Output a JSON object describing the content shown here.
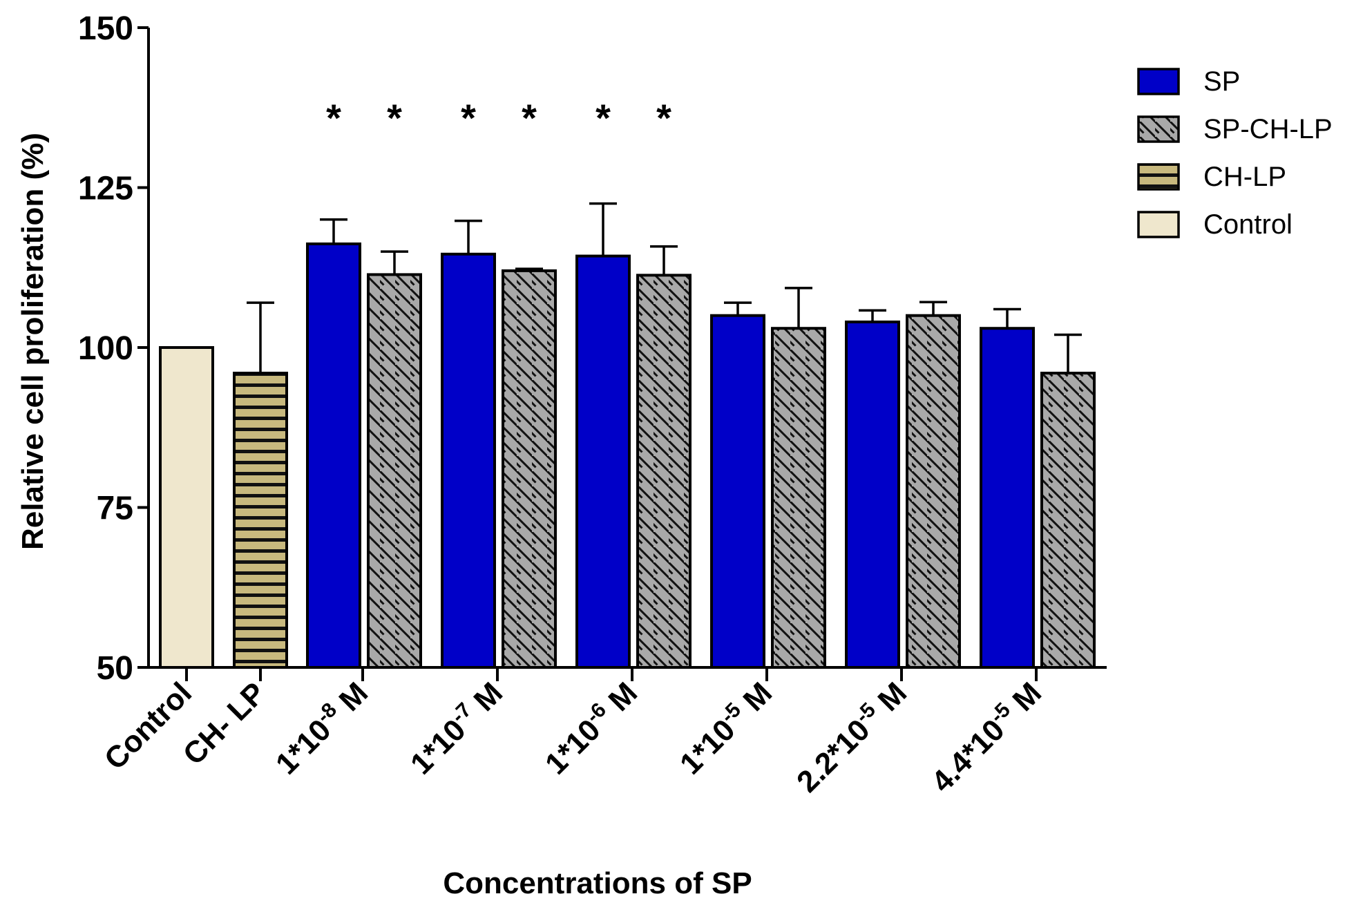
{
  "chart_data": {
    "type": "bar",
    "title": "",
    "xlabel": "Concentrations of SP",
    "ylabel": "Relative cell proliferation (%)",
    "ylim": [
      50,
      150
    ],
    "yticks": [
      50,
      75,
      100,
      125,
      150
    ],
    "grid": false,
    "legend_position": "top-right",
    "colors": {
      "SP": "#0000c8",
      "SP-CH-LP": "#a9a9a9",
      "CH-LP": "#c8b97e",
      "Control": "#efe7cd"
    },
    "legend": [
      {
        "name": "SP",
        "pattern": "solid"
      },
      {
        "name": "SP-CH-LP",
        "pattern": "diagonal"
      },
      {
        "name": "CH-LP",
        "pattern": "horizontal"
      },
      {
        "name": "Control",
        "pattern": "solid"
      }
    ],
    "groups": [
      {
        "label": "Control",
        "bars": [
          {
            "series": "Control",
            "value": 100,
            "error": 0,
            "significant": false
          }
        ]
      },
      {
        "label": "CH- LP",
        "bars": [
          {
            "series": "CH-LP",
            "value": 96,
            "error": 11,
            "significant": false
          }
        ]
      },
      {
        "label": "1*10-8 M",
        "base": "1*10",
        "exp": "-8",
        "unit": " M",
        "bars": [
          {
            "series": "SP",
            "value": 116.2,
            "error": 3.8,
            "significant": true
          },
          {
            "series": "SP-CH-LP",
            "value": 111.4,
            "error": 3.6,
            "significant": true
          }
        ]
      },
      {
        "label": "1*10-7 M",
        "base": "1*10",
        "exp": "-7",
        "unit": " M",
        "bars": [
          {
            "series": "SP",
            "value": 114.6,
            "error": 5.2,
            "significant": true
          },
          {
            "series": "SP-CH-LP",
            "value": 112.0,
            "error": 0.3,
            "significant": true
          }
        ]
      },
      {
        "label": "1*10-6 M",
        "base": "1*10",
        "exp": "-6",
        "unit": " M",
        "bars": [
          {
            "series": "SP",
            "value": 114.3,
            "error": 8.2,
            "significant": true
          },
          {
            "series": "SP-CH-LP",
            "value": 111.3,
            "error": 4.5,
            "significant": true
          }
        ]
      },
      {
        "label": "1*10-5 M",
        "base": "1*10",
        "exp": "-5",
        "unit": " M",
        "bars": [
          {
            "series": "SP",
            "value": 105.0,
            "error": 2.0,
            "significant": false
          },
          {
            "series": "SP-CH-LP",
            "value": 103.0,
            "error": 6.3,
            "significant": false
          }
        ]
      },
      {
        "label": "2.2*10-5 M",
        "base": "2.2*10",
        "exp": "-5",
        "unit": " M",
        "bars": [
          {
            "series": "SP",
            "value": 104.0,
            "error": 1.8,
            "significant": false
          },
          {
            "series": "SP-CH-LP",
            "value": 105.0,
            "error": 2.1,
            "significant": false
          }
        ]
      },
      {
        "label": "4.4*10-5 M",
        "base": "4.4*10",
        "exp": "-5",
        "unit": " M",
        "bars": [
          {
            "series": "SP",
            "value": 103.0,
            "error": 3.0,
            "significant": false
          },
          {
            "series": "SP-CH-LP",
            "value": 96.0,
            "error": 6.0,
            "significant": false
          }
        ]
      }
    ],
    "annotation_symbol": "*"
  }
}
